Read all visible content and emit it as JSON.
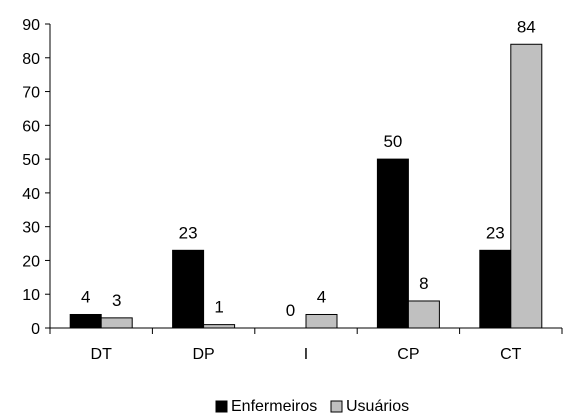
{
  "caption_fragment": "",
  "chart_data": {
    "type": "bar",
    "title": "",
    "xlabel": "",
    "ylabel": "",
    "ylim": [
      0,
      90
    ],
    "yticks": [
      0,
      10,
      20,
      30,
      40,
      50,
      60,
      70,
      80,
      90
    ],
    "categories": [
      "DT",
      "DP",
      "I",
      "CP",
      "CT"
    ],
    "series": [
      {
        "name": "Enfermeiros",
        "values": [
          4,
          23,
          0,
          50,
          23
        ],
        "color": "#000000"
      },
      {
        "name": "Usuários",
        "values": [
          3,
          1,
          4,
          8,
          84
        ],
        "color": "#c0c0c0"
      }
    ],
    "legend": {
      "position": "bottom-center"
    },
    "grid": false,
    "data_labels": true
  }
}
